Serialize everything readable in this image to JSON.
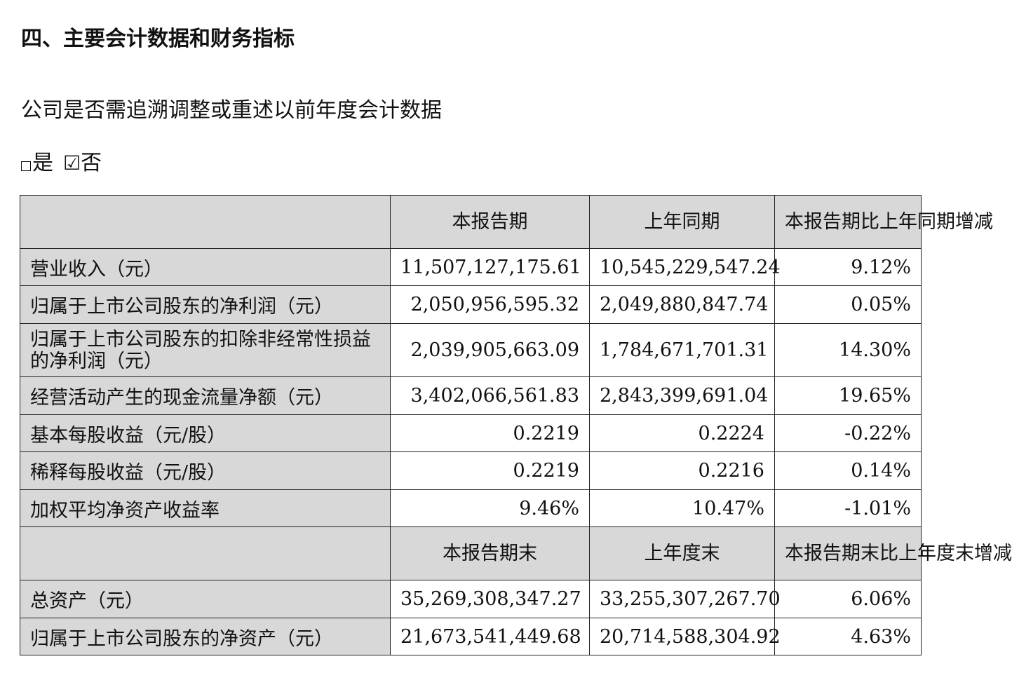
{
  "section_title": "四、主要会计数据和财务指标",
  "question": "公司是否需追溯调整或重述以前年度会计数据",
  "options": {
    "yes_label": "是",
    "yes_checked": false,
    "no_label": "否",
    "no_checked": true
  },
  "table": {
    "header1": [
      "",
      "本报告期",
      "上年同期",
      "本报告期比上年同期增减"
    ],
    "rows1": [
      {
        "label": "营业收入（元）",
        "current": "11,507,127,175.61",
        "prior": "10,545,229,547.24",
        "change": "9.12%"
      },
      {
        "label": "归属于上市公司股东的净利润（元）",
        "current": "2,050,956,595.32",
        "prior": "2,049,880,847.74",
        "change": "0.05%"
      },
      {
        "label": "归属于上市公司股东的扣除非经常性损益的净利润（元）",
        "current": "2,039,905,663.09",
        "prior": "1,784,671,701.31",
        "change": "14.30%"
      },
      {
        "label": "经营活动产生的现金流量净额（元）",
        "current": "3,402,066,561.83",
        "prior": "2,843,399,691.04",
        "change": "19.65%"
      },
      {
        "label": "基本每股收益（元/股）",
        "current": "0.2219",
        "prior": "0.2224",
        "change": "-0.22%"
      },
      {
        "label": "稀释每股收益（元/股）",
        "current": "0.2219",
        "prior": "0.2216",
        "change": "0.14%"
      },
      {
        "label": "加权平均净资产收益率",
        "current": "9.46%",
        "prior": "10.47%",
        "change": "-1.01%"
      }
    ],
    "header2": [
      "",
      "本报告期末",
      "上年度末",
      "本报告期末比上年度末增减"
    ],
    "rows2": [
      {
        "label": "总资产（元）",
        "current": "35,269,308,347.27",
        "prior": "33,255,307,267.70",
        "change": "6.06%"
      },
      {
        "label": "归属于上市公司股东的净资产（元）",
        "current": "21,673,541,449.68",
        "prior": "20,714,588,304.92",
        "change": "4.63%"
      }
    ]
  }
}
